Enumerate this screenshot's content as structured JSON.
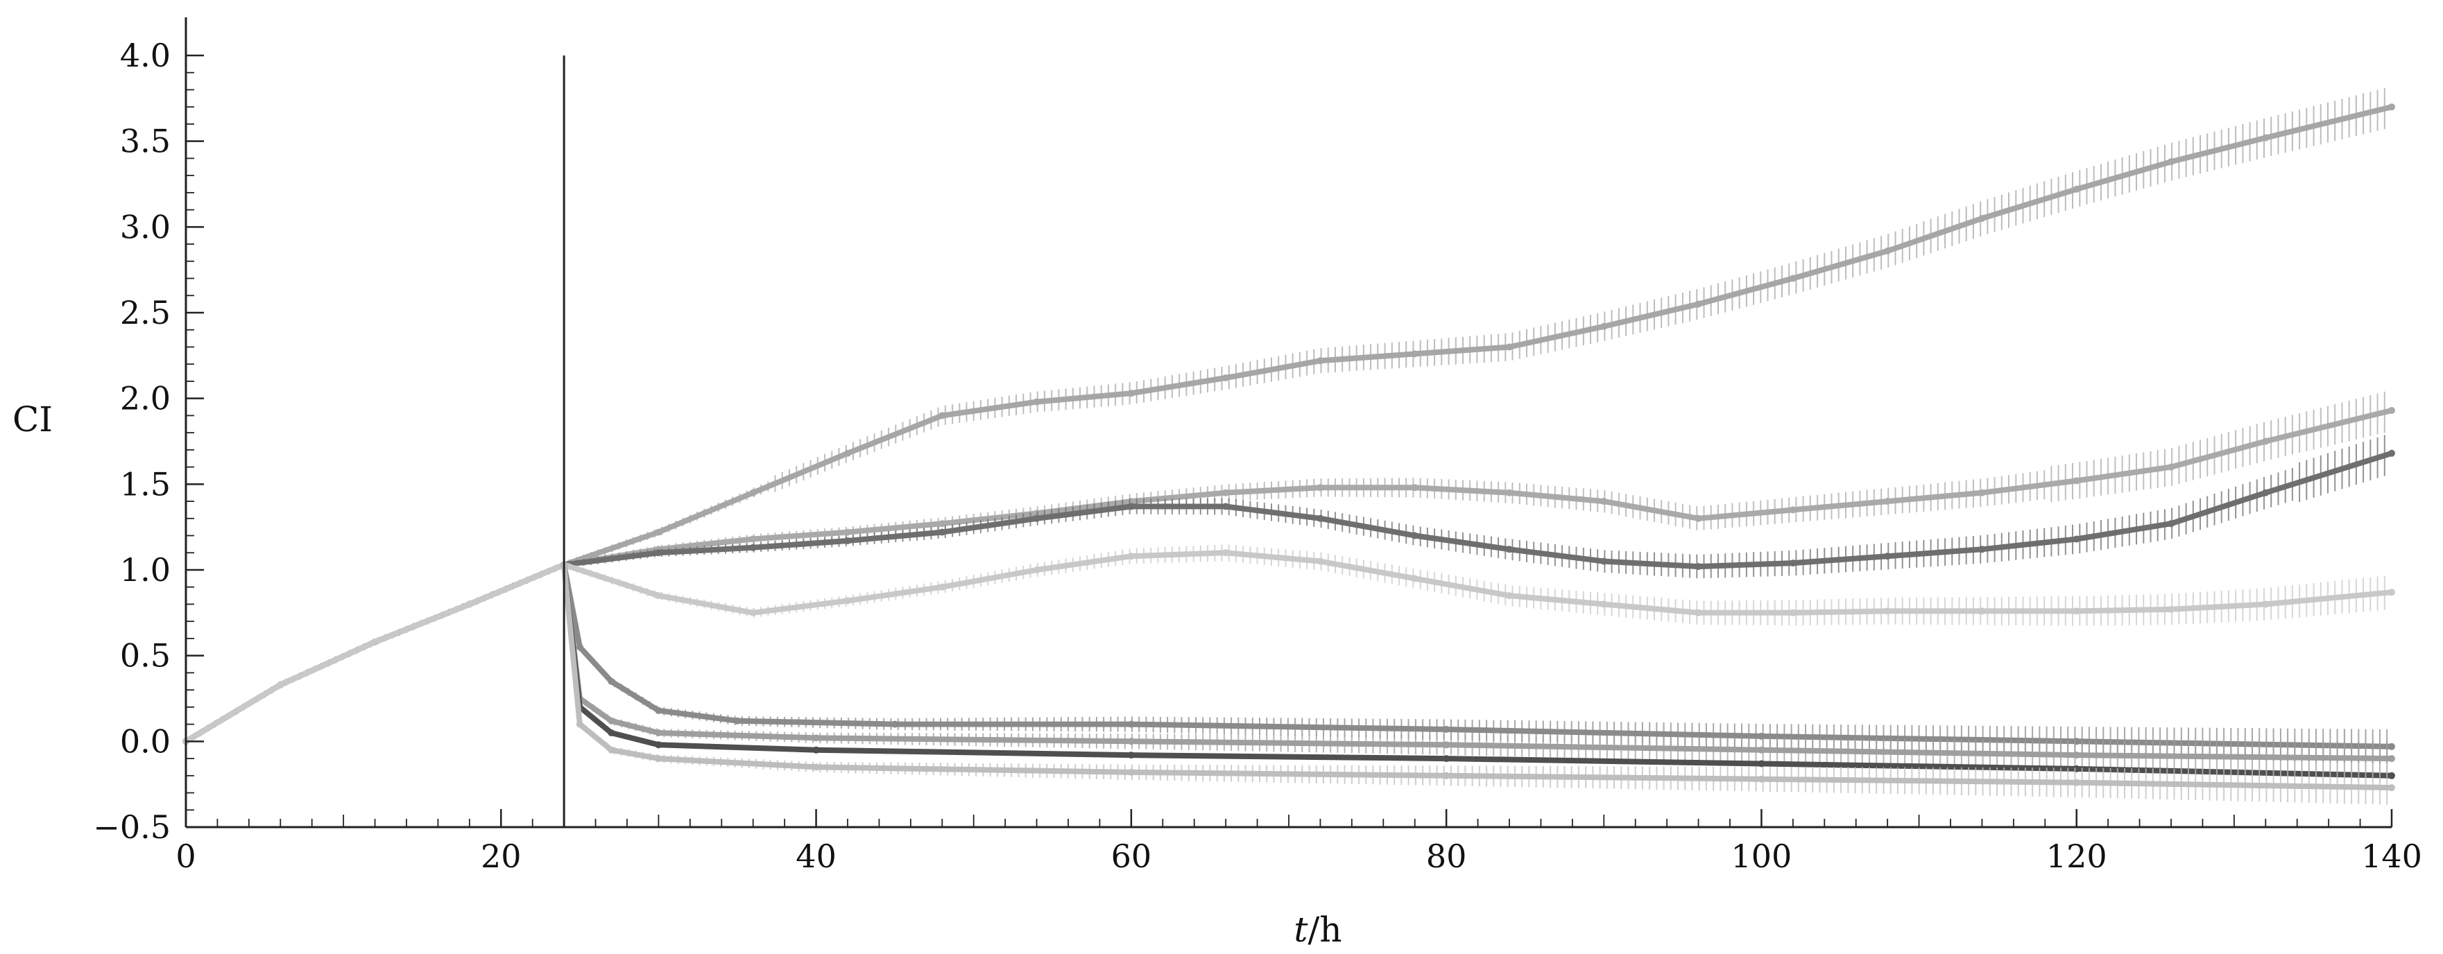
{
  "chart_data": {
    "type": "line",
    "title": "",
    "xlabel_var": "t",
    "xlabel_unit": "/h",
    "ylabel": "CI",
    "xlim": [
      0,
      140
    ],
    "ylim": [
      -0.5,
      4.0
    ],
    "x_ticks": [
      "0",
      "20",
      "40",
      "60",
      "80",
      "100",
      "120",
      "140"
    ],
    "y_ticks": [
      "−0.5",
      "0.0",
      "0.5",
      "1.0",
      "1.5",
      "2.0",
      "2.5",
      "3.0",
      "3.5",
      "4.0"
    ],
    "grid": false,
    "legend": "none",
    "annotation": {
      "type": "vertical_line",
      "x": 24,
      "y_top": 4.0
    },
    "series": [
      {
        "color": "#a6a6a6",
        "error_bars": true,
        "points": [
          [
            0,
            0
          ],
          [
            6,
            0.33
          ],
          [
            12,
            0.58
          ],
          [
            18,
            0.8
          ],
          [
            24,
            1.03
          ],
          [
            30,
            1.22
          ],
          [
            36,
            1.45
          ],
          [
            42,
            1.68
          ],
          [
            48,
            1.9
          ],
          [
            54,
            1.98
          ],
          [
            60,
            2.03
          ],
          [
            66,
            2.12
          ],
          [
            72,
            2.22
          ],
          [
            78,
            2.26
          ],
          [
            84,
            2.3
          ],
          [
            90,
            2.42
          ],
          [
            96,
            2.55
          ],
          [
            102,
            2.7
          ],
          [
            108,
            2.86
          ],
          [
            114,
            3.05
          ],
          [
            120,
            3.22
          ],
          [
            126,
            3.38
          ],
          [
            132,
            3.52
          ],
          [
            140,
            3.7
          ]
        ]
      },
      {
        "color": "#a9a9a9",
        "error_bars": true,
        "points": [
          [
            0,
            0
          ],
          [
            6,
            0.33
          ],
          [
            12,
            0.58
          ],
          [
            18,
            0.8
          ],
          [
            24,
            1.03
          ],
          [
            30,
            1.12
          ],
          [
            36,
            1.18
          ],
          [
            42,
            1.22
          ],
          [
            48,
            1.27
          ],
          [
            54,
            1.33
          ],
          [
            60,
            1.4
          ],
          [
            66,
            1.45
          ],
          [
            72,
            1.48
          ],
          [
            78,
            1.48
          ],
          [
            84,
            1.45
          ],
          [
            90,
            1.4
          ],
          [
            96,
            1.3
          ],
          [
            102,
            1.35
          ],
          [
            108,
            1.4
          ],
          [
            114,
            1.45
          ],
          [
            120,
            1.52
          ],
          [
            126,
            1.6
          ],
          [
            132,
            1.75
          ],
          [
            140,
            1.93
          ]
        ]
      },
      {
        "color": "#6e6e6e",
        "error_bars": true,
        "points": [
          [
            0,
            0
          ],
          [
            6,
            0.33
          ],
          [
            12,
            0.58
          ],
          [
            18,
            0.8
          ],
          [
            24,
            1.03
          ],
          [
            30,
            1.1
          ],
          [
            36,
            1.13
          ],
          [
            42,
            1.17
          ],
          [
            48,
            1.22
          ],
          [
            54,
            1.3
          ],
          [
            60,
            1.37
          ],
          [
            66,
            1.37
          ],
          [
            72,
            1.3
          ],
          [
            78,
            1.2
          ],
          [
            84,
            1.12
          ],
          [
            90,
            1.05
          ],
          [
            96,
            1.02
          ],
          [
            102,
            1.04
          ],
          [
            108,
            1.08
          ],
          [
            114,
            1.12
          ],
          [
            120,
            1.18
          ],
          [
            126,
            1.27
          ],
          [
            132,
            1.45
          ],
          [
            140,
            1.68
          ]
        ]
      },
      {
        "color": "#c8c8c8",
        "error_bars": true,
        "points": [
          [
            0,
            0
          ],
          [
            6,
            0.33
          ],
          [
            12,
            0.58
          ],
          [
            18,
            0.8
          ],
          [
            24,
            1.03
          ],
          [
            30,
            0.85
          ],
          [
            36,
            0.75
          ],
          [
            42,
            0.82
          ],
          [
            48,
            0.9
          ],
          [
            54,
            1.0
          ],
          [
            60,
            1.08
          ],
          [
            66,
            1.1
          ],
          [
            72,
            1.05
          ],
          [
            78,
            0.95
          ],
          [
            84,
            0.85
          ],
          [
            90,
            0.8
          ],
          [
            96,
            0.75
          ],
          [
            102,
            0.75
          ],
          [
            108,
            0.76
          ],
          [
            114,
            0.76
          ],
          [
            120,
            0.76
          ],
          [
            126,
            0.77
          ],
          [
            132,
            0.8
          ],
          [
            140,
            0.87
          ]
        ]
      },
      {
        "color": "#8a8a8a",
        "error_bars": true,
        "points": [
          [
            24,
            1.03
          ],
          [
            25,
            0.55
          ],
          [
            27,
            0.35
          ],
          [
            30,
            0.18
          ],
          [
            35,
            0.12
          ],
          [
            45,
            0.1
          ],
          [
            60,
            0.1
          ],
          [
            80,
            0.07
          ],
          [
            100,
            0.03
          ],
          [
            120,
            0.0
          ],
          [
            140,
            -0.03
          ]
        ]
      },
      {
        "color": "#9e9e9e",
        "error_bars": true,
        "points": [
          [
            24,
            1.03
          ],
          [
            25,
            0.25
          ],
          [
            27,
            0.12
          ],
          [
            30,
            0.05
          ],
          [
            40,
            0.02
          ],
          [
            60,
            0.0
          ],
          [
            80,
            -0.02
          ],
          [
            100,
            -0.05
          ],
          [
            120,
            -0.08
          ],
          [
            140,
            -0.1
          ]
        ]
      },
      {
        "color": "#4f4f4f",
        "error_bars": false,
        "points": [
          [
            24,
            1.03
          ],
          [
            25,
            0.2
          ],
          [
            27,
            0.05
          ],
          [
            30,
            -0.02
          ],
          [
            40,
            -0.05
          ],
          [
            60,
            -0.08
          ],
          [
            80,
            -0.1
          ],
          [
            100,
            -0.13
          ],
          [
            120,
            -0.16
          ],
          [
            140,
            -0.2
          ]
        ]
      },
      {
        "color": "#bdbdbd",
        "error_bars": true,
        "points": [
          [
            24,
            1.03
          ],
          [
            25,
            0.1
          ],
          [
            27,
            -0.05
          ],
          [
            30,
            -0.1
          ],
          [
            40,
            -0.15
          ],
          [
            60,
            -0.18
          ],
          [
            80,
            -0.2
          ],
          [
            100,
            -0.22
          ],
          [
            120,
            -0.24
          ],
          [
            140,
            -0.27
          ]
        ]
      }
    ]
  }
}
